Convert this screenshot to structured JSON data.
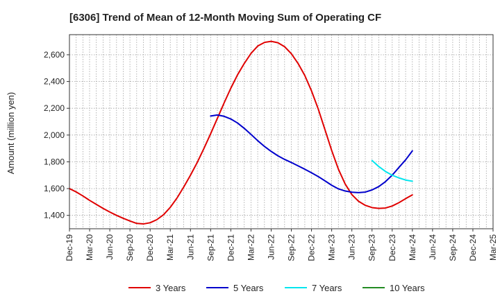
{
  "chart_data": {
    "type": "line",
    "title": "[6306]  Trend of Mean of 12-Month Moving Sum of Operating CF",
    "xlabel": "",
    "ylabel": "Amount (million yen)",
    "ylim": [
      1300,
      2750
    ],
    "yticks": [
      1400,
      1600,
      1800,
      2000,
      2200,
      2400,
      2600
    ],
    "ytick_labels": [
      "1,400",
      "1,600",
      "1,800",
      "2,000",
      "2,200",
      "2,400",
      "2,600"
    ],
    "x_start": "Dec-19",
    "x_months": 63,
    "xticks": [
      0,
      3,
      6,
      9,
      12,
      15,
      18,
      21,
      24,
      27,
      30,
      33,
      36,
      39,
      42,
      45,
      48,
      51,
      54,
      57,
      60,
      63
    ],
    "xtick_labels": [
      "Dec-19",
      "Mar-20",
      "Jun-20",
      "Sep-20",
      "Dec-20",
      "Mar-21",
      "Jun-21",
      "Sep-21",
      "Dec-21",
      "Mar-22",
      "Jun-22",
      "Sep-22",
      "Dec-22",
      "Mar-23",
      "Jun-23",
      "Sep-23",
      "Dec-23",
      "Mar-24",
      "Jun-24",
      "Sep-24",
      "Dec-24",
      "Mar-25"
    ],
    "grid": true,
    "legend_position": "bottom",
    "series": [
      {
        "name": "3 Years",
        "color": "#e00000",
        "x": [
          0,
          1,
          2,
          3,
          4,
          5,
          6,
          7,
          8,
          9,
          10,
          11,
          12,
          13,
          14,
          15,
          16,
          17,
          18,
          19,
          20,
          21,
          22,
          23,
          24,
          25,
          26,
          27,
          28,
          29,
          30,
          31,
          32,
          33,
          34,
          35,
          36,
          37,
          38,
          39,
          40,
          41,
          42,
          43,
          44,
          45,
          46,
          47,
          48,
          49,
          50,
          51
        ],
        "values": [
          1600,
          1575,
          1545,
          1512,
          1482,
          1452,
          1425,
          1400,
          1378,
          1358,
          1340,
          1336,
          1345,
          1368,
          1405,
          1460,
          1530,
          1612,
          1700,
          1795,
          1900,
          2010,
          2125,
          2240,
          2350,
          2450,
          2535,
          2610,
          2665,
          2692,
          2700,
          2690,
          2660,
          2608,
          2535,
          2445,
          2330,
          2195,
          2040,
          1885,
          1745,
          1635,
          1555,
          1505,
          1475,
          1458,
          1452,
          1455,
          1470,
          1495,
          1525,
          1553
        ]
      },
      {
        "name": "5 Years",
        "color": "#0000cc",
        "x": [
          21,
          22,
          23,
          24,
          25,
          26,
          27,
          28,
          29,
          30,
          31,
          32,
          33,
          34,
          35,
          36,
          37,
          38,
          39,
          40,
          41,
          42,
          43,
          44,
          45,
          46,
          47,
          48,
          49,
          50,
          51
        ],
        "values": [
          2142,
          2150,
          2140,
          2120,
          2090,
          2050,
          2005,
          1958,
          1915,
          1878,
          1845,
          1818,
          1795,
          1770,
          1745,
          1718,
          1690,
          1658,
          1625,
          1598,
          1582,
          1573,
          1570,
          1574,
          1590,
          1615,
          1652,
          1700,
          1758,
          1815,
          1882
        ]
      },
      {
        "name": "7 Years",
        "color": "#00e5ee",
        "x": [
          45,
          46,
          47,
          48,
          49,
          50,
          51
        ],
        "values": [
          1810,
          1765,
          1728,
          1700,
          1680,
          1664,
          1655
        ]
      },
      {
        "name": "10 Years",
        "color": "#228b22",
        "x": [],
        "values": []
      }
    ]
  }
}
